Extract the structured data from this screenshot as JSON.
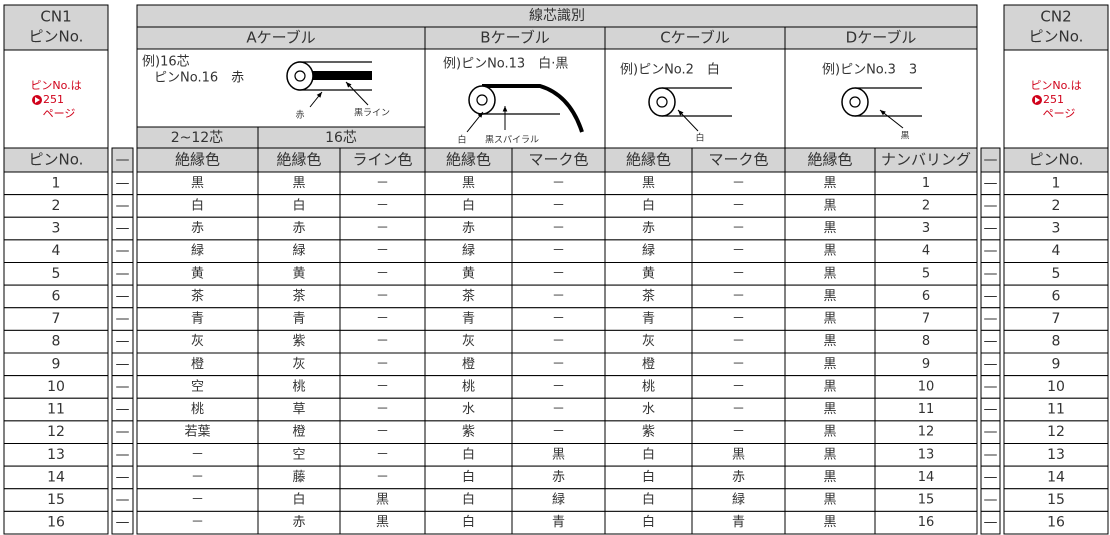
{
  "cn1": {
    "title": "CN1",
    "subtitle": "ピンNo.",
    "note": {
      "line1": "ピンNo.は",
      "page": "251",
      "line3": "ページ"
    },
    "column_header": "ピンNo."
  },
  "cn2": {
    "title": "CN2",
    "subtitle": "ピンNo.",
    "note": {
      "line1": "ピンNo.は",
      "page": "251",
      "line3": "ページ"
    },
    "column_header": "ピンNo."
  },
  "connector": "—",
  "table": {
    "title": "線芯識別",
    "cables": [
      {
        "name": "Aケーブル",
        "example": [
          "例)16芯",
          "ピンNo.16　赤"
        ],
        "labels": [
          "赤",
          "黒ライン"
        ],
        "groups": [
          "2~12芯",
          "16芯"
        ]
      },
      {
        "name": "Bケーブル",
        "example": [
          "例)ピンNo.13　白·黒"
        ],
        "labels": [
          "白",
          "黒スパイラル"
        ]
      },
      {
        "name": "Cケーブル",
        "example": [
          "例)ピンNo.2　白"
        ],
        "labels": [
          "白"
        ]
      },
      {
        "name": "Dケーブル",
        "example": [
          "例)ピンNo.3　3"
        ],
        "labels": [
          "黒"
        ]
      }
    ],
    "column_headers": [
      "絶縁色",
      "絶縁色",
      "ライン色",
      "絶縁色",
      "マーク色",
      "絶縁色",
      "マーク色",
      "絶縁色",
      "ナンバリング"
    ],
    "rows": [
      {
        "cn1_pin": "1",
        "cells": [
          "黒",
          "黒",
          "－",
          "黒",
          "－",
          "黒",
          "－",
          "黒",
          "1"
        ],
        "cn2_pin": "1"
      },
      {
        "cn1_pin": "2",
        "cells": [
          "白",
          "白",
          "－",
          "白",
          "－",
          "白",
          "－",
          "黒",
          "2"
        ],
        "cn2_pin": "2"
      },
      {
        "cn1_pin": "3",
        "cells": [
          "赤",
          "赤",
          "－",
          "赤",
          "－",
          "赤",
          "－",
          "黒",
          "3"
        ],
        "cn2_pin": "3"
      },
      {
        "cn1_pin": "4",
        "cells": [
          "緑",
          "緑",
          "－",
          "緑",
          "－",
          "緑",
          "－",
          "黒",
          "4"
        ],
        "cn2_pin": "4"
      },
      {
        "cn1_pin": "5",
        "cells": [
          "黄",
          "黄",
          "－",
          "黄",
          "－",
          "黄",
          "－",
          "黒",
          "5"
        ],
        "cn2_pin": "5"
      },
      {
        "cn1_pin": "6",
        "cells": [
          "茶",
          "茶",
          "－",
          "茶",
          "－",
          "茶",
          "－",
          "黒",
          "6"
        ],
        "cn2_pin": "6"
      },
      {
        "cn1_pin": "7",
        "cells": [
          "青",
          "青",
          "－",
          "青",
          "－",
          "青",
          "－",
          "黒",
          "7"
        ],
        "cn2_pin": "7"
      },
      {
        "cn1_pin": "8",
        "cells": [
          "灰",
          "紫",
          "－",
          "灰",
          "－",
          "灰",
          "－",
          "黒",
          "8"
        ],
        "cn2_pin": "8"
      },
      {
        "cn1_pin": "9",
        "cells": [
          "橙",
          "灰",
          "－",
          "橙",
          "－",
          "橙",
          "－",
          "黒",
          "9"
        ],
        "cn2_pin": "9"
      },
      {
        "cn1_pin": "10",
        "cells": [
          "空",
          "桃",
          "－",
          "桃",
          "－",
          "桃",
          "－",
          "黒",
          "10"
        ],
        "cn2_pin": "10"
      },
      {
        "cn1_pin": "11",
        "cells": [
          "桃",
          "草",
          "－",
          "水",
          "－",
          "水",
          "－",
          "黒",
          "11"
        ],
        "cn2_pin": "11"
      },
      {
        "cn1_pin": "12",
        "cells": [
          "若葉",
          "橙",
          "－",
          "紫",
          "－",
          "紫",
          "－",
          "黒",
          "12"
        ],
        "cn2_pin": "12"
      },
      {
        "cn1_pin": "13",
        "cells": [
          "－",
          "空",
          "－",
          "白",
          "黒",
          "白",
          "黒",
          "黒",
          "13"
        ],
        "cn2_pin": "13"
      },
      {
        "cn1_pin": "14",
        "cells": [
          "－",
          "藤",
          "－",
          "白",
          "赤",
          "白",
          "赤",
          "黒",
          "14"
        ],
        "cn2_pin": "14"
      },
      {
        "cn1_pin": "15",
        "cells": [
          "－",
          "白",
          "黒",
          "白",
          "緑",
          "白",
          "緑",
          "黒",
          "15"
        ],
        "cn2_pin": "15"
      },
      {
        "cn1_pin": "16",
        "cells": [
          "－",
          "赤",
          "黒",
          "白",
          "青",
          "白",
          "青",
          "黒",
          "16"
        ],
        "cn2_pin": "16"
      }
    ]
  }
}
